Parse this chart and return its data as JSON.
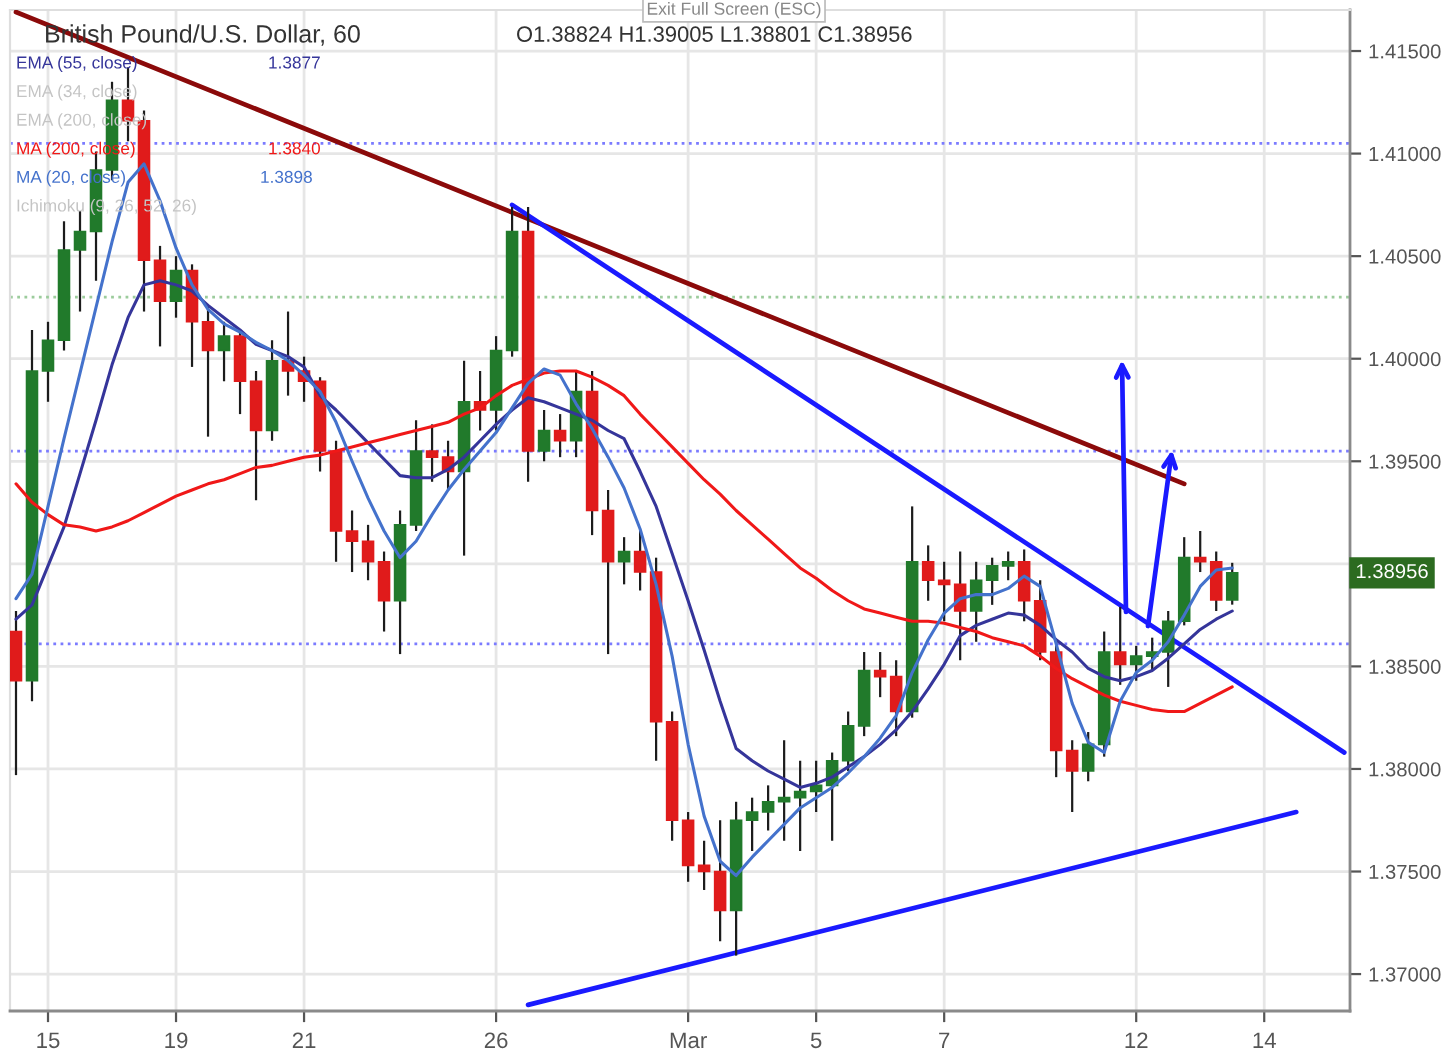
{
  "chart_data": {
    "type": "candlestick",
    "title": "British Pound/U.S. Dollar, 60",
    "categories": [
      null,
      null,
      "15",
      null,
      null,
      null,
      null,
      null,
      null,
      null,
      "19",
      null,
      null,
      null,
      null,
      null,
      null,
      null,
      "21",
      null,
      null,
      null,
      null,
      null,
      null,
      null,
      null,
      null,
      null,
      null,
      "26",
      null,
      null,
      null,
      null,
      null,
      null,
      null,
      null,
      null,
      null,
      null,
      "Mar",
      null,
      null,
      null,
      null,
      null,
      null,
      null,
      "5",
      null,
      null,
      null,
      null,
      null,
      null,
      null,
      "7",
      null,
      null,
      null,
      null,
      null,
      null,
      null,
      null,
      null,
      null,
      null,
      "12",
      null,
      null,
      null,
      null,
      null,
      null,
      null,
      "14",
      null,
      null,
      null,
      null,
      null
    ],
    "ylim": [
      1.3682,
      1.417
    ],
    "yticks": [
      {
        "value": 1.37,
        "label": "1.37000"
      },
      {
        "value": 1.375,
        "label": "1.37500"
      },
      {
        "value": 1.38,
        "label": "1.38000"
      },
      {
        "value": 1.385,
        "label": "1.38500"
      },
      {
        "value": 1.39,
        "label": null
      },
      {
        "value": 1.395,
        "label": "1.39500"
      },
      {
        "value": 1.4,
        "label": "1.40000"
      },
      {
        "value": 1.405,
        "label": "1.40500"
      },
      {
        "value": 1.41,
        "label": "1.41000"
      },
      {
        "value": 1.415,
        "label": "1.41500"
      }
    ],
    "grid": true,
    "legend": "top left",
    "series": [
      {
        "ohlc": [
          [
            1.3867,
            1.3877,
            1.3797,
            1.3843
          ],
          [
            1.3843,
            1.4014,
            1.3833,
            1.3994
          ],
          [
            1.3994,
            1.4018,
            1.3979,
            1.4009
          ],
          [
            1.4009,
            1.4067,
            1.4004,
            1.4053
          ],
          [
            1.4053,
            1.4072,
            1.4023,
            1.4062
          ],
          [
            1.4062,
            1.4101,
            1.4038,
            1.4092
          ],
          [
            1.4092,
            1.4135,
            1.4087,
            1.4126
          ],
          [
            1.4126,
            1.4142,
            1.4106,
            1.4116
          ],
          [
            1.4116,
            1.4121,
            1.4023,
            1.4048
          ],
          [
            1.4048,
            1.4055,
            1.4006,
            1.4028
          ],
          [
            1.4028,
            1.405,
            1.402,
            1.4043
          ],
          [
            1.4043,
            1.4046,
            1.3996,
            1.4018
          ],
          [
            1.4018,
            1.4026,
            1.3962,
            1.4004
          ],
          [
            1.4004,
            1.4018,
            1.3989,
            1.4011
          ],
          [
            1.4011,
            1.4014,
            1.3973,
            1.3989
          ],
          [
            1.3989,
            1.3994,
            1.3931,
            1.3965
          ],
          [
            1.3965,
            1.4009,
            1.396,
            1.3999
          ],
          [
            1.3999,
            1.4023,
            1.3982,
            1.3994
          ],
          [
            1.3994,
            1.4001,
            1.3979,
            1.3989
          ],
          [
            1.3989,
            1.3991,
            1.3945,
            1.3955
          ],
          [
            1.3955,
            1.396,
            1.3901,
            1.3916
          ],
          [
            1.3916,
            1.3926,
            1.3896,
            1.3911
          ],
          [
            1.3911,
            1.3919,
            1.3892,
            1.3901
          ],
          [
            1.3901,
            1.3906,
            1.3867,
            1.3882
          ],
          [
            1.3882,
            1.3926,
            1.3856,
            1.3919
          ],
          [
            1.3919,
            1.397,
            1.3916,
            1.3955
          ],
          [
            1.3955,
            1.3968,
            1.394,
            1.3952
          ],
          [
            1.3952,
            1.396,
            1.3936,
            1.3945
          ],
          [
            1.3945,
            1.3999,
            1.3904,
            1.3979
          ],
          [
            1.3979,
            1.3994,
            1.3965,
            1.3975
          ],
          [
            1.3975,
            1.4011,
            1.3965,
            1.4004
          ],
          [
            1.4004,
            1.4074,
            1.4001,
            1.4062
          ],
          [
            1.4062,
            1.4074,
            1.394,
            1.3955
          ],
          [
            1.3955,
            1.3975,
            1.395,
            1.3965
          ],
          [
            1.3965,
            1.3973,
            1.3952,
            1.396
          ],
          [
            1.396,
            1.3994,
            1.3952,
            1.3984
          ],
          [
            1.3984,
            1.3994,
            1.3914,
            1.3926
          ],
          [
            1.3926,
            1.3936,
            1.3856,
            1.3901
          ],
          [
            1.3901,
            1.3913,
            1.389,
            1.3906
          ],
          [
            1.3906,
            1.3916,
            1.3887,
            1.3896
          ],
          [
            1.3896,
            1.3903,
            1.3804,
            1.3823
          ],
          [
            1.3823,
            1.3828,
            1.3765,
            1.3775
          ],
          [
            1.3775,
            1.3779,
            1.3745,
            1.3753
          ],
          [
            1.3753,
            1.3765,
            1.3741,
            1.375
          ],
          [
            1.375,
            1.3775,
            1.3716,
            1.3731
          ],
          [
            1.3731,
            1.3784,
            1.3709,
            1.3775
          ],
          [
            1.3775,
            1.3786,
            1.376,
            1.3779
          ],
          [
            1.3779,
            1.3792,
            1.377,
            1.3784
          ],
          [
            1.3784,
            1.3814,
            1.3765,
            1.3786
          ],
          [
            1.3786,
            1.3804,
            1.376,
            1.3789
          ],
          [
            1.3789,
            1.3804,
            1.3779,
            1.3792
          ],
          [
            1.3792,
            1.3808,
            1.3765,
            1.3804
          ],
          [
            1.3804,
            1.3828,
            1.3799,
            1.3821
          ],
          [
            1.3821,
            1.3857,
            1.3816,
            1.3848
          ],
          [
            1.3848,
            1.3857,
            1.3835,
            1.3845
          ],
          [
            1.3845,
            1.3853,
            1.3816,
            1.3828
          ],
          [
            1.3828,
            1.3928,
            1.3825,
            1.3901
          ],
          [
            1.3901,
            1.3909,
            1.3882,
            1.3892
          ],
          [
            1.3892,
            1.3901,
            1.3872,
            1.389
          ],
          [
            1.389,
            1.3906,
            1.3853,
            1.3877
          ],
          [
            1.3877,
            1.3901,
            1.3862,
            1.3892
          ],
          [
            1.3892,
            1.3903,
            1.388,
            1.3899
          ],
          [
            1.3899,
            1.3906,
            1.3892,
            1.3901
          ],
          [
            1.3901,
            1.3907,
            1.3872,
            1.3882
          ],
          [
            1.3882,
            1.3892,
            1.3853,
            1.3857
          ],
          [
            1.3857,
            1.3862,
            1.3796,
            1.3809
          ],
          [
            1.3809,
            1.3814,
            1.3779,
            1.3799
          ],
          [
            1.3799,
            1.3818,
            1.3794,
            1.3812
          ],
          [
            1.3812,
            1.3867,
            1.3806,
            1.3857
          ],
          [
            1.3857,
            1.3879,
            1.3841,
            1.3851
          ],
          [
            1.3851,
            1.386,
            1.3843,
            1.3855
          ],
          [
            1.3855,
            1.3864,
            1.3848,
            1.3857
          ],
          [
            1.3857,
            1.3877,
            1.384,
            1.3872
          ],
          [
            1.3872,
            1.3913,
            1.387,
            1.3903
          ],
          [
            1.3903,
            1.3916,
            1.3896,
            1.3901
          ],
          [
            1.3901,
            1.3906,
            1.3877,
            1.38824
          ],
          [
            1.38824,
            1.39005,
            1.38801,
            1.38956
          ],
          null,
          null,
          null,
          null,
          null,
          null,
          null
        ],
        "colors": [
          "#e01b1b",
          "#217a2b",
          "#217a2b",
          "#217a2b",
          "#217a2b",
          "#217a2b",
          "#217a2b",
          "#e01b1b",
          "#e01b1b",
          "#e01b1b",
          "#217a2b",
          "#e01b1b",
          "#e01b1b",
          "#217a2b",
          "#e01b1b",
          "#e01b1b",
          "#217a2b",
          "#e01b1b",
          "#e01b1b",
          "#e01b1b",
          "#e01b1b",
          "#e01b1b",
          "#e01b1b",
          "#e01b1b",
          "#217a2b",
          "#217a2b",
          "#e01b1b",
          "#e01b1b",
          "#217a2b",
          "#e01b1b",
          "#217a2b",
          "#217a2b",
          "#e01b1b",
          "#217a2b",
          "#e01b1b",
          "#217a2b",
          "#e01b1b",
          "#e01b1b",
          "#217a2b",
          "#e01b1b",
          "#e01b1b",
          "#e01b1b",
          "#e01b1b",
          "#e01b1b",
          "#e01b1b",
          "#217a2b",
          "#217a2b",
          "#217a2b",
          "#217a2b",
          "#217a2b",
          "#217a2b",
          "#217a2b",
          "#217a2b",
          "#217a2b",
          "#e01b1b",
          "#e01b1b",
          "#217a2b",
          "#e01b1b",
          "#e01b1b",
          "#e01b1b",
          "#217a2b",
          "#217a2b",
          "#217a2b",
          "#e01b1b",
          "#e01b1b",
          "#e01b1b",
          "#e01b1b",
          "#217a2b",
          "#217a2b",
          "#e01b1b",
          "#217a2b",
          "#217a2b",
          "#217a2b",
          "#217a2b",
          "#e01b1b",
          "#e01b1b",
          "#217a2b",
          null,
          null,
          null,
          null,
          null,
          null,
          null
        ]
      },
      {
        "type": "line",
        "name": "EMA (55, close)",
        "color": "#35359a",
        "values": [
          1.3873,
          1.388,
          1.3899,
          1.3918,
          1.3944,
          1.397,
          1.3997,
          1.402,
          1.4036,
          1.4038,
          1.4036,
          1.4033,
          1.4026,
          1.402,
          1.4014,
          1.4007,
          1.4004,
          1.4001,
          1.3996,
          1.3982,
          1.3975,
          1.3967,
          1.3959,
          1.3951,
          1.3943,
          1.3942,
          1.3942,
          1.3946,
          1.3952,
          1.396,
          1.3968,
          1.3975,
          1.3981,
          1.3979,
          1.3976,
          1.3973,
          1.397,
          1.3965,
          1.3961,
          1.3945,
          1.3928,
          1.3905,
          1.3882,
          1.3858,
          1.3833,
          1.381,
          1.3804,
          1.3799,
          1.3795,
          1.3791,
          1.3793,
          1.3796,
          1.3801,
          1.3806,
          1.3812,
          1.3819,
          1.3828,
          1.3839,
          1.3851,
          1.3865,
          1.387,
          1.3873,
          1.3876,
          1.3875,
          1.387,
          1.3863,
          1.3857,
          1.3849,
          1.3845,
          1.3843,
          1.3845,
          1.3848,
          1.3854,
          1.3861,
          1.3868,
          1.3873,
          1.3877,
          null,
          null,
          null,
          null,
          null,
          null,
          null
        ]
      },
      {
        "type": "line",
        "name": "MA (200, close)",
        "color": "#f01818",
        "values": [
          1.3939,
          1.393,
          1.3924,
          1.3919,
          1.3918,
          1.3916,
          1.3918,
          1.3921,
          1.3925,
          1.3929,
          1.3933,
          1.3936,
          1.3939,
          1.3941,
          1.3944,
          1.3947,
          1.3948,
          1.395,
          1.3952,
          1.3953,
          1.3955,
          1.3957,
          1.3959,
          1.3961,
          1.3963,
          1.3965,
          1.3967,
          1.3969,
          1.3973,
          1.3976,
          1.3982,
          1.3987,
          1.399,
          1.3993,
          1.3994,
          1.3994,
          1.3991,
          1.3987,
          1.3982,
          1.3973,
          1.3965,
          1.3957,
          1.3949,
          1.3941,
          1.3934,
          1.3926,
          1.3919,
          1.3912,
          1.3905,
          1.3898,
          1.3893,
          1.3887,
          1.3882,
          1.3878,
          1.3876,
          1.3874,
          1.3872,
          1.3872,
          1.3871,
          1.3869,
          1.3867,
          1.3864,
          1.3862,
          1.386,
          1.3855,
          1.3849,
          1.3844,
          1.384,
          1.3836,
          1.3833,
          1.3831,
          1.3829,
          1.3828,
          1.3828,
          1.3832,
          1.3836,
          1.384,
          null,
          null,
          null,
          null,
          null,
          null,
          null
        ]
      },
      {
        "type": "line",
        "name": "MA (20, close)",
        "color": "#4472cc",
        "values": [
          1.3883,
          1.3895,
          1.3928,
          1.3961,
          1.3993,
          1.4025,
          1.4057,
          1.4086,
          1.4095,
          1.4077,
          1.4054,
          1.4036,
          1.4024,
          1.4017,
          1.4013,
          1.4008,
          1.4004,
          1.3999,
          1.3992,
          1.3984,
          1.3969,
          1.395,
          1.3932,
          1.3916,
          1.3903,
          1.3911,
          1.3924,
          1.3936,
          1.3946,
          1.3955,
          1.3964,
          1.3976,
          1.3988,
          1.3995,
          1.3992,
          1.3978,
          1.3966,
          1.3952,
          1.3937,
          1.3917,
          1.389,
          1.3855,
          1.3812,
          1.3777,
          1.3755,
          1.3748,
          1.3757,
          1.3765,
          1.3773,
          1.3781,
          1.3786,
          1.3791,
          1.3798,
          1.3806,
          1.3815,
          1.3826,
          1.3847,
          1.3863,
          1.3876,
          1.3883,
          1.3885,
          1.3885,
          1.3888,
          1.3894,
          1.3889,
          1.3861,
          1.3832,
          1.3813,
          1.3808,
          1.3833,
          1.3847,
          1.3853,
          1.3862,
          1.3875,
          1.3889,
          1.3897,
          1.3898,
          null,
          null,
          null,
          null,
          null,
          null,
          null
        ]
      },
      {
        "type": "line",
        "color": "#8b0a0a",
        "values": [
          1.4169,
          null,
          null,
          null,
          null,
          null,
          null,
          null,
          null,
          null,
          null,
          null,
          null,
          null,
          null,
          null,
          null,
          null,
          null,
          null,
          null,
          null,
          null,
          null,
          null,
          null,
          null,
          null,
          null,
          null,
          null,
          null,
          null,
          null,
          null,
          null,
          null,
          null,
          null,
          null,
          null,
          null,
          null,
          null,
          null,
          null,
          null,
          null,
          null,
          null,
          null,
          null,
          null,
          null,
          null,
          null,
          null,
          null,
          null,
          null,
          null,
          null,
          null,
          null,
          null,
          null,
          null,
          null,
          null,
          null,
          null,
          null,
          null,
          1.3939,
          null,
          null,
          null,
          null,
          null,
          null,
          null,
          null,
          null,
          null
        ]
      },
      {
        "type": "line",
        "color": "#1a1aff",
        "values": [
          null,
          null,
          null,
          null,
          null,
          null,
          null,
          null,
          null,
          null,
          null,
          null,
          null,
          null,
          null,
          null,
          null,
          null,
          null,
          null,
          null,
          null,
          null,
          null,
          null,
          null,
          null,
          null,
          null,
          null,
          null,
          1.4075,
          null,
          null,
          null,
          null,
          null,
          null,
          null,
          null,
          null,
          null,
          null,
          null,
          null,
          null,
          null,
          null,
          null,
          null,
          null,
          null,
          null,
          null,
          null,
          null,
          null,
          null,
          null,
          null,
          null,
          null,
          null,
          null,
          null,
          null,
          null,
          null,
          null,
          null,
          null,
          null,
          null,
          null,
          null,
          null,
          null,
          null,
          null,
          null,
          null,
          null,
          null,
          1.3808
        ]
      },
      {
        "type": "line",
        "color": "#1a1aff",
        "values": [
          null,
          null,
          null,
          null,
          null,
          null,
          null,
          null,
          null,
          null,
          null,
          null,
          null,
          null,
          null,
          null,
          null,
          null,
          null,
          null,
          null,
          null,
          null,
          null,
          null,
          null,
          null,
          null,
          null,
          null,
          null,
          null,
          1.3685,
          null,
          null,
          null,
          null,
          null,
          null,
          null,
          null,
          null,
          null,
          null,
          null,
          null,
          null,
          null,
          null,
          null,
          null,
          null,
          null,
          null,
          null,
          null,
          null,
          null,
          null,
          null,
          null,
          null,
          null,
          null,
          null,
          null,
          null,
          null,
          null,
          null,
          null,
          null,
          null,
          null,
          null,
          null,
          null,
          null,
          null,
          null,
          1.3779,
          null,
          null,
          null
        ]
      }
    ],
    "ref_lines": [
      {
        "axis": "y",
        "value": 1.4105,
        "color": "#7b7bff",
        "line_style": "dotted"
      },
      {
        "axis": "y",
        "value": 1.403,
        "color": "#9ccc9c",
        "line_style": "dotted"
      },
      {
        "axis": "y",
        "value": 1.3955,
        "color": "#7b7bff",
        "line_style": "dotted"
      },
      {
        "axis": "y",
        "value": 1.3861,
        "color": "#7b7bff",
        "line_style": "dotted"
      }
    ],
    "annotations": [
      "O1.38824 H1.39005 L1.38801 C1.38956",
      "1.3877",
      "EMA (34, close)",
      "EMA (200, close)",
      "1.3840",
      "1.3898",
      "Ichimoku (9, 26, 52, 26)",
      "Exit Full Screen (ESC)",
      "1.38956"
    ]
  }
}
